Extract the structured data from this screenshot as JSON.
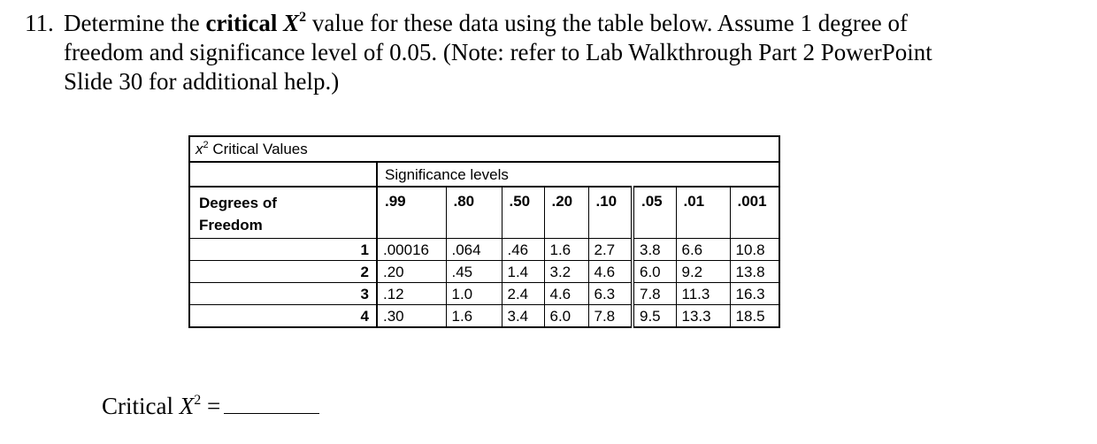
{
  "question": {
    "number": "11.",
    "line1_start": "Determine the",
    "critical_word": "critical",
    "symbol": "X",
    "symbol_sup": "2",
    "line1_end": "value for these data using the table below. Assume 1 degree of",
    "line2": "freedom and significance level of 0.05. (Note: refer to Lab Walkthrough Part 2 PowerPoint",
    "line3": "Slide 30 for additional help.)"
  },
  "table": {
    "title_symbol": "x",
    "title_sup": "2",
    "title_text": "Critical Values",
    "significance_header": "Significance levels",
    "dof_header_line1": "Degrees of",
    "dof_header_line2": "Freedom",
    "levels": [
      ".99",
      ".80",
      ".50",
      ".20",
      ".10",
      ".05",
      ".01",
      ".001"
    ],
    "rows": [
      {
        "dof": "1",
        "values": [
          ".00016",
          ".064",
          ".46",
          "1.6",
          "2.7",
          "3.8",
          "6.6",
          "10.8"
        ]
      },
      {
        "dof": "2",
        "values": [
          ".20",
          ".45",
          "1.4",
          "3.2",
          "4.6",
          "6.0",
          "9.2",
          "13.8"
        ]
      },
      {
        "dof": "3",
        "values": [
          ".12",
          "1.0",
          "2.4",
          "4.6",
          "6.3",
          "7.8",
          "11.3",
          "16.3"
        ]
      },
      {
        "dof": "4",
        "values": [
          ".30",
          "1.6",
          "3.4",
          "6.0",
          "7.8",
          "9.5",
          "13.3",
          "18.5"
        ]
      }
    ]
  },
  "answer": {
    "label": "Critical",
    "symbol": "X",
    "symbol_sup": "2",
    "equals": "=",
    "value": ""
  }
}
